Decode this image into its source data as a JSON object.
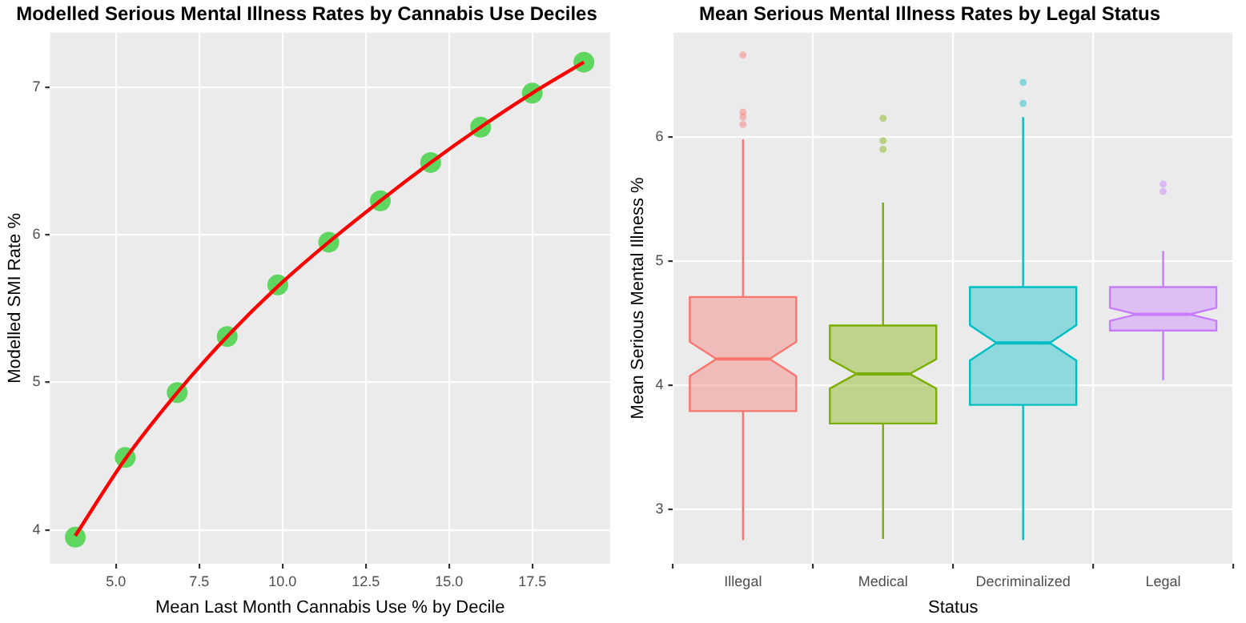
{
  "chart_data": [
    {
      "type": "scatter",
      "title": "Modelled Serious Mental Illness Rates by Cannabis Use Deciles",
      "xlabel": "Mean Last Month Cannabis Use % by Decile",
      "ylabel": "Modelled SMI Rate %",
      "xlim": [
        3.02,
        19.84
      ],
      "ylim": [
        3.77,
        7.37
      ],
      "xticks": [
        {
          "value": 5,
          "label": "5.0"
        },
        {
          "value": 7.5,
          "label": "7.5"
        },
        {
          "value": 10,
          "label": "10.0"
        },
        {
          "value": 12.5,
          "label": "12.5"
        },
        {
          "value": 15,
          "label": "15.0"
        },
        {
          "value": 17.5,
          "label": "17.5"
        }
      ],
      "yticks": [
        4,
        5,
        6,
        7
      ],
      "grid": true,
      "legend": false,
      "series": [
        {
          "type": "scatter",
          "color": "#5fd65f",
          "x": [
            3.78,
            5.28,
            6.84,
            8.34,
            9.86,
            11.39,
            12.94,
            14.45,
            15.95,
            17.5,
            19.05
          ],
          "values": [
            3.95,
            4.49,
            4.93,
            5.31,
            5.66,
            5.95,
            6.23,
            6.49,
            6.73,
            6.96,
            7.17
          ]
        },
        {
          "type": "line",
          "color": "#ff0000",
          "line_style": "solid",
          "x": [
            3.78,
            5.28,
            6.84,
            8.34,
            9.86,
            11.39,
            12.94,
            14.45,
            15.95,
            17.5,
            19.05
          ],
          "values": [
            3.96,
            4.48,
            4.93,
            5.31,
            5.65,
            5.95,
            6.23,
            6.49,
            6.73,
            6.96,
            7.17
          ]
        }
      ]
    },
    {
      "type": "box",
      "title": "Mean Serious Mental Illness Rates by Legal Status",
      "xlabel": "Status",
      "ylabel": "Mean Serious Mental Illness %",
      "ylim": [
        2.56,
        6.84
      ],
      "yticks": [
        3,
        4,
        5,
        6
      ],
      "grid": true,
      "legend": false,
      "categories": [
        "Illegal",
        "Medical",
        "Decriminalized",
        "Legal"
      ],
      "colors": [
        "#f8766d",
        "#7cae00",
        "#00bfc4",
        "#c77cff"
      ],
      "boxes": [
        {
          "low": 2.75,
          "q1": 3.79,
          "median": 4.21,
          "q3": 4.71,
          "high": 5.98,
          "outliers": [
            6.66,
            6.2,
            6.16,
            6.1
          ]
        },
        {
          "low": 2.76,
          "q1": 3.69,
          "median": 4.09,
          "q3": 4.48,
          "high": 5.47,
          "outliers": [
            6.15,
            5.97,
            5.9
          ]
        },
        {
          "low": 2.75,
          "q1": 3.84,
          "median": 4.34,
          "q3": 4.79,
          "high": 6.16,
          "outliers": [
            6.44,
            6.27
          ]
        },
        {
          "low": 4.04,
          "q1": 4.44,
          "median": 4.57,
          "q3": 4.79,
          "high": 5.08,
          "outliers": [
            5.62,
            5.56
          ]
        }
      ]
    }
  ]
}
